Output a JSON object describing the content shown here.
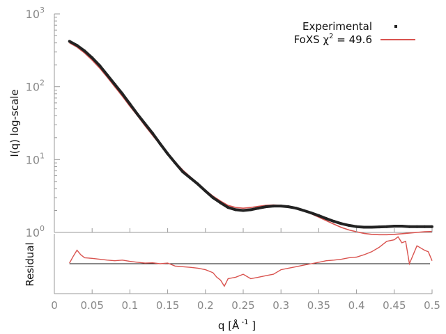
{
  "chart_data": [
    {
      "type": "scatter",
      "xlabel": "",
      "ylabel": "I(q) log-scale",
      "y_scale": "log",
      "xlim": [
        0,
        0.5
      ],
      "ylim": [
        1,
        1000
      ],
      "grid": false,
      "legend_placement": "top-right",
      "y_ticks": [
        {
          "base": "10",
          "exp": "0"
        },
        {
          "base": "10",
          "exp": "1"
        },
        {
          "base": "10",
          "exp": "2"
        },
        {
          "base": "10",
          "exp": "3"
        }
      ],
      "legend": {
        "experimental_label": "Experimental",
        "fit_label_prefix": "FoXS χ",
        "fit_label_sup": "2",
        "fit_label_suffix": " = 49.6"
      },
      "series": [
        {
          "name": "Experimental",
          "color": "#222222",
          "marker": "dot",
          "x": [
            0.02,
            0.03,
            0.04,
            0.05,
            0.06,
            0.07,
            0.08,
            0.09,
            0.1,
            0.11,
            0.12,
            0.13,
            0.14,
            0.15,
            0.16,
            0.17,
            0.18,
            0.19,
            0.2,
            0.21,
            0.22,
            0.23,
            0.24,
            0.25,
            0.26,
            0.27,
            0.28,
            0.29,
            0.3,
            0.31,
            0.32,
            0.33,
            0.34,
            0.35,
            0.36,
            0.37,
            0.38,
            0.39,
            0.4,
            0.41,
            0.42,
            0.43,
            0.44,
            0.45,
            0.46,
            0.47,
            0.48,
            0.49,
            0.5
          ],
          "y": [
            420,
            370,
            310,
            250,
            195,
            145,
            108,
            80,
            58,
            42,
            31,
            23,
            16.5,
            12,
            9,
            6.8,
            5.6,
            4.6,
            3.7,
            3.0,
            2.55,
            2.2,
            2.05,
            2.0,
            2.05,
            2.15,
            2.25,
            2.3,
            2.3,
            2.25,
            2.15,
            2.0,
            1.85,
            1.7,
            1.55,
            1.42,
            1.32,
            1.25,
            1.2,
            1.18,
            1.18,
            1.19,
            1.2,
            1.22,
            1.22,
            1.2,
            1.2,
            1.2,
            1.2
          ]
        },
        {
          "name": "FoXS χ2 = 49.6",
          "color": "#d9534f",
          "marker": "line",
          "x": [
            0.02,
            0.03,
            0.04,
            0.05,
            0.06,
            0.07,
            0.08,
            0.09,
            0.1,
            0.11,
            0.12,
            0.13,
            0.14,
            0.15,
            0.16,
            0.17,
            0.18,
            0.19,
            0.2,
            0.21,
            0.22,
            0.23,
            0.24,
            0.25,
            0.26,
            0.27,
            0.28,
            0.29,
            0.3,
            0.31,
            0.32,
            0.33,
            0.34,
            0.35,
            0.36,
            0.37,
            0.38,
            0.39,
            0.4,
            0.41,
            0.42,
            0.43,
            0.44,
            0.45,
            0.46,
            0.47,
            0.48,
            0.49,
            0.5
          ],
          "y": [
            400,
            350,
            290,
            232,
            180,
            135,
            100,
            74,
            54,
            40,
            29,
            21.5,
            16,
            12,
            9.2,
            7.2,
            5.8,
            4.7,
            3.8,
            3.15,
            2.7,
            2.35,
            2.2,
            2.15,
            2.2,
            2.28,
            2.36,
            2.38,
            2.36,
            2.28,
            2.15,
            1.98,
            1.8,
            1.62,
            1.45,
            1.3,
            1.17,
            1.08,
            1.02,
            0.97,
            0.94,
            0.93,
            0.93,
            0.94,
            0.96,
            0.98,
            1.0,
            1.02,
            1.03
          ]
        }
      ]
    },
    {
      "type": "line",
      "xlabel": "q [Å -1 ]",
      "xlabel_main": "q [Å",
      "xlabel_sup": " -1",
      "xlabel_close": " ]",
      "ylabel": "Residual",
      "xlim": [
        0,
        0.5
      ],
      "ylim": [
        -1,
        1
      ],
      "x_ticks": [
        "0",
        "0.05",
        "0.1",
        "0.15",
        "0.2",
        "0.25",
        "0.3",
        "0.35",
        "0.4",
        "0.45",
        "0.5"
      ],
      "baseline": 0,
      "series": [
        {
          "name": "Residual",
          "color": "#d9534f",
          "x": [
            0.02,
            0.025,
            0.03,
            0.035,
            0.04,
            0.05,
            0.06,
            0.07,
            0.08,
            0.09,
            0.1,
            0.11,
            0.12,
            0.13,
            0.14,
            0.15,
            0.16,
            0.17,
            0.18,
            0.19,
            0.2,
            0.21,
            0.215,
            0.22,
            0.225,
            0.23,
            0.24,
            0.25,
            0.26,
            0.27,
            0.28,
            0.29,
            0.3,
            0.31,
            0.32,
            0.33,
            0.34,
            0.35,
            0.36,
            0.37,
            0.38,
            0.39,
            0.4,
            0.41,
            0.42,
            0.43,
            0.44,
            0.45,
            0.455,
            0.46,
            0.465,
            0.47,
            0.48,
            0.49,
            0.495,
            0.5
          ],
          "y": [
            0.02,
            0.25,
            0.45,
            0.3,
            0.2,
            0.18,
            0.15,
            0.12,
            0.1,
            0.12,
            0.08,
            0.05,
            0.02,
            0.03,
            0.0,
            0.02,
            -0.08,
            -0.1,
            -0.12,
            -0.15,
            -0.2,
            -0.3,
            -0.45,
            -0.55,
            -0.75,
            -0.5,
            -0.45,
            -0.35,
            -0.5,
            -0.45,
            -0.4,
            -0.35,
            -0.2,
            -0.15,
            -0.1,
            -0.05,
            0.0,
            0.05,
            0.1,
            0.12,
            0.15,
            0.2,
            0.22,
            0.3,
            0.4,
            0.55,
            0.75,
            0.8,
            0.9,
            0.7,
            0.75,
            0.0,
            0.6,
            0.45,
            0.4,
            0.1
          ]
        }
      ]
    }
  ]
}
